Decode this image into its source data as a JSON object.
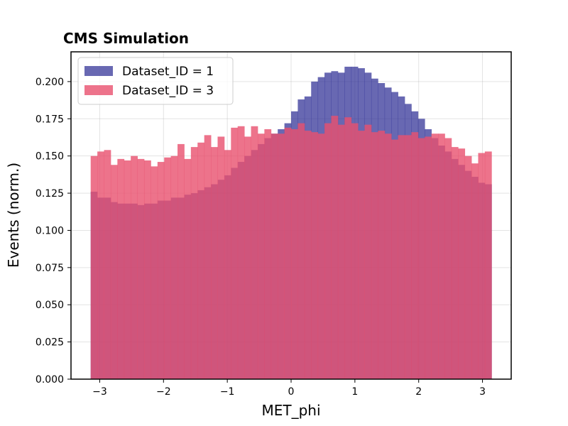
{
  "chart_data": {
    "type": "bar",
    "title": "CMS Simulation",
    "xlabel": "MET_phi",
    "ylabel": "Events (norm.)",
    "xlim": [
      -3.45,
      3.45
    ],
    "ylim": [
      0,
      0.22
    ],
    "xticks": [
      "−3",
      "−2",
      "−1",
      "0",
      "1",
      "2",
      "3"
    ],
    "xtick_values": [
      -3,
      -2,
      -1,
      0,
      1,
      2,
      3
    ],
    "yticks": [
      "0.000",
      "0.025",
      "0.050",
      "0.075",
      "0.100",
      "0.125",
      "0.150",
      "0.175",
      "0.200"
    ],
    "ytick_values": [
      0,
      0.025,
      0.05,
      0.075,
      0.1,
      0.125,
      0.15,
      0.175,
      0.2
    ],
    "grid": true,
    "legend_position": "top-left",
    "bins": {
      "start": -3.1416,
      "end": 3.1416,
      "count": 60
    },
    "series": [
      {
        "name": "Dataset_ID = 1",
        "color": "#2e2e94",
        "alpha": 0.72,
        "values": [
          0.126,
          0.122,
          0.122,
          0.119,
          0.118,
          0.118,
          0.118,
          0.117,
          0.118,
          0.118,
          0.12,
          0.12,
          0.122,
          0.122,
          0.124,
          0.125,
          0.127,
          0.129,
          0.131,
          0.134,
          0.137,
          0.142,
          0.146,
          0.15,
          0.154,
          0.158,
          0.162,
          0.165,
          0.168,
          0.172,
          0.18,
          0.188,
          0.19,
          0.2,
          0.203,
          0.206,
          0.207,
          0.206,
          0.21,
          0.21,
          0.209,
          0.206,
          0.202,
          0.199,
          0.196,
          0.193,
          0.19,
          0.185,
          0.18,
          0.175,
          0.168,
          0.162,
          0.157,
          0.153,
          0.148,
          0.144,
          0.14,
          0.136,
          0.132,
          0.131
        ]
      },
      {
        "name": "Dataset_ID = 3",
        "color": "#e8506e",
        "alpha": 0.8,
        "values": [
          0.15,
          0.153,
          0.154,
          0.144,
          0.148,
          0.147,
          0.15,
          0.148,
          0.147,
          0.143,
          0.146,
          0.149,
          0.15,
          0.158,
          0.148,
          0.156,
          0.159,
          0.164,
          0.156,
          0.163,
          0.154,
          0.169,
          0.17,
          0.163,
          0.17,
          0.165,
          0.168,
          0.165,
          0.165,
          0.169,
          0.168,
          0.172,
          0.167,
          0.166,
          0.165,
          0.172,
          0.177,
          0.171,
          0.176,
          0.172,
          0.167,
          0.171,
          0.166,
          0.167,
          0.165,
          0.161,
          0.164,
          0.164,
          0.166,
          0.162,
          0.163,
          0.165,
          0.165,
          0.162,
          0.156,
          0.155,
          0.15,
          0.145,
          0.152,
          0.153
        ]
      }
    ]
  }
}
